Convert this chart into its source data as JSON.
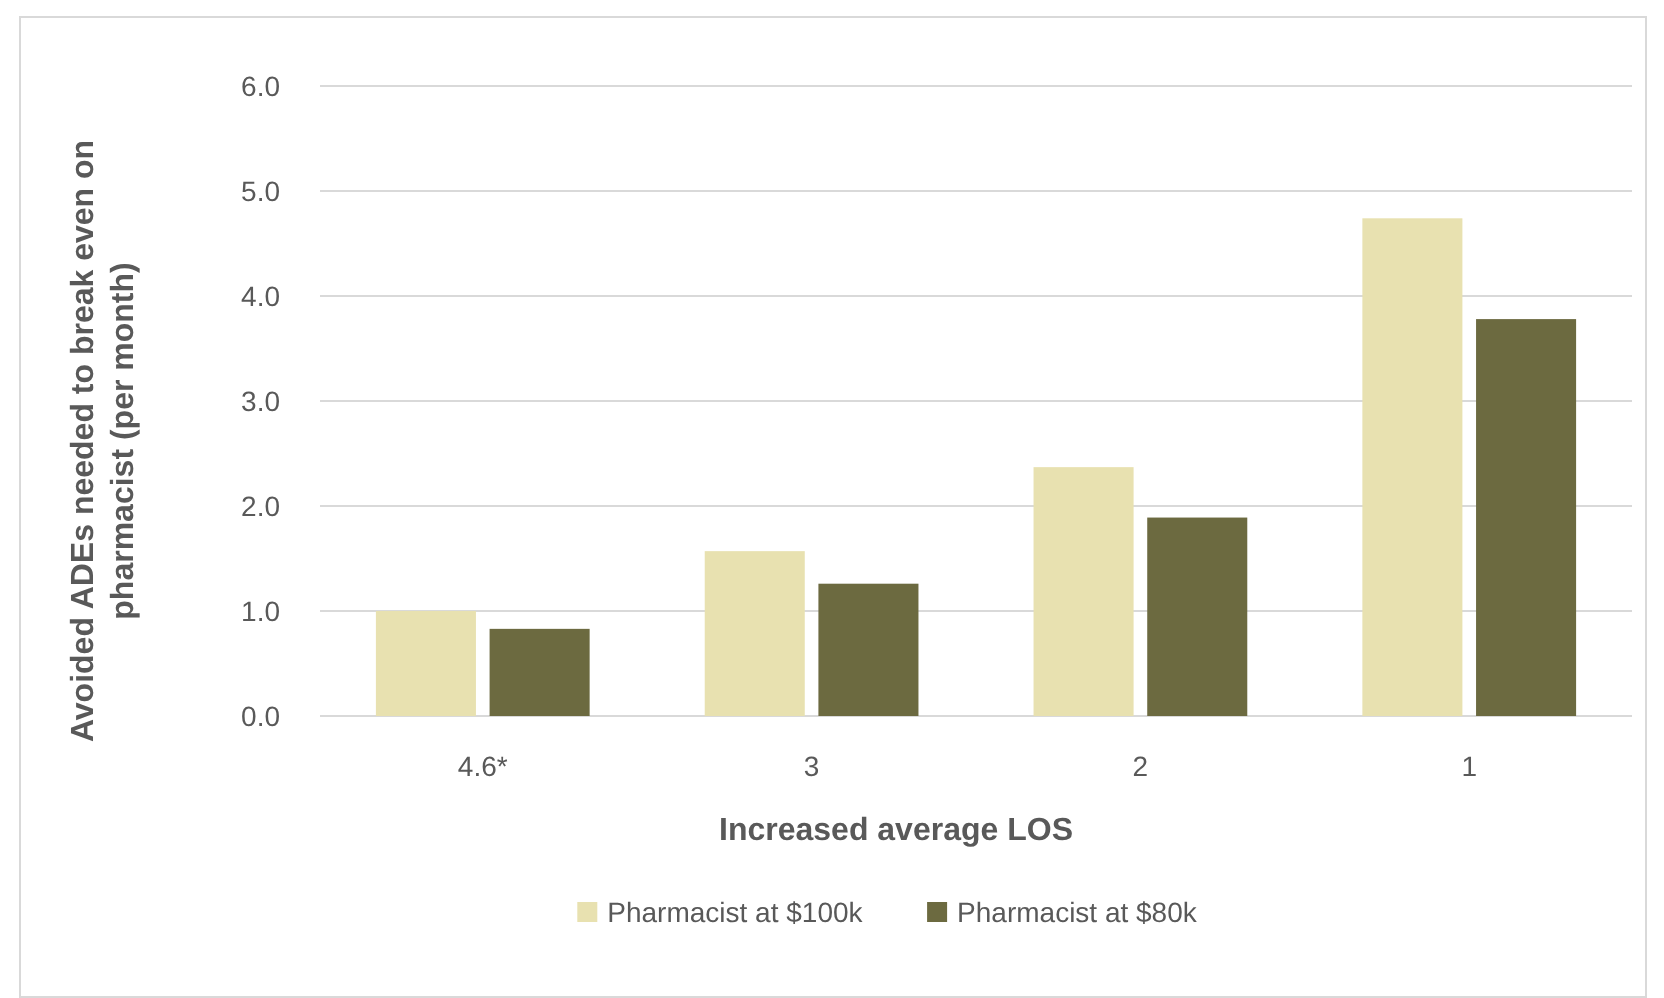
{
  "chart_data": {
    "type": "bar",
    "xlabel": "Increased average LOS",
    "ylabel": "Avoided ADEs needed to break even on pharmacist (per month)",
    "categories": [
      "4.6*",
      "3",
      "2",
      "1"
    ],
    "series": [
      {
        "name": "Pharmacist at $100k",
        "color": "#e8e1b0",
        "values": [
          1.0,
          1.57,
          2.37,
          4.74
        ]
      },
      {
        "name": "Pharmacist at $80k",
        "color": "#6c6a40",
        "values": [
          0.83,
          1.26,
          1.89,
          3.78
        ]
      }
    ],
    "ylim": [
      0,
      6
    ],
    "yticks": [
      {
        "value": 0,
        "label": "0.0"
      },
      {
        "value": 1,
        "label": "1.0"
      },
      {
        "value": 2,
        "label": "2.0"
      },
      {
        "value": 3,
        "label": "3.0"
      },
      {
        "value": 4,
        "label": "4.0"
      },
      {
        "value": 5,
        "label": "5.0"
      },
      {
        "value": 6,
        "label": "6.0"
      }
    ],
    "grid": "y",
    "legend": "bottom"
  }
}
